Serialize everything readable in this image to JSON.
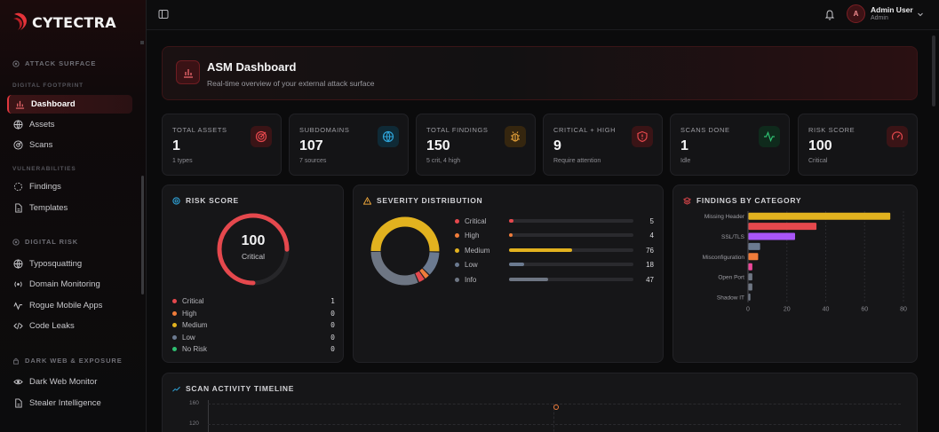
{
  "brand": {
    "name": "CYTECTRA"
  },
  "sidebar": {
    "sections": [
      {
        "title": "ATTACK SURFACE",
        "icon": "target-icon"
      },
      {
        "title": "DIGITAL RISK",
        "icon": "eye-icon"
      },
      {
        "title": "DARK WEB & EXPOSURE",
        "icon": "globe-lock-icon"
      }
    ],
    "subsections": [
      "DIGITAL FOOTPRINT",
      "VULNERABILITIES"
    ],
    "items": [
      {
        "label": "Dashboard",
        "icon": "bar-chart-icon",
        "active": true
      },
      {
        "label": "Assets",
        "icon": "globe-icon"
      },
      {
        "label": "Scans",
        "icon": "radar-icon"
      },
      {
        "label": "Findings",
        "icon": "crosshair-icon"
      },
      {
        "label": "Templates",
        "icon": "file-icon"
      },
      {
        "label": "Typosquatting",
        "icon": "globe-icon"
      },
      {
        "label": "Domain Monitoring",
        "icon": "radio-icon"
      },
      {
        "label": "Rogue Mobile Apps",
        "icon": "activity-icon"
      },
      {
        "label": "Code Leaks",
        "icon": "code-icon"
      },
      {
        "label": "Dark Web Monitor",
        "icon": "eye-icon"
      },
      {
        "label": "Stealer Intelligence",
        "icon": "file-icon"
      }
    ]
  },
  "topbar": {
    "user": {
      "initial": "A",
      "name": "Admin User",
      "role": "Admin"
    }
  },
  "hero": {
    "title": "ASM Dashboard",
    "subtitle": "Real-time overview of your external attack surface"
  },
  "stats": [
    {
      "label": "TOTAL ASSETS",
      "value": "1",
      "sub": "1 types",
      "icon": "target-icon",
      "color": "#e5484d"
    },
    {
      "label": "SUBDOMAINS",
      "value": "107",
      "sub": "7 sources",
      "icon": "globe-icon",
      "color": "#2fa4d9"
    },
    {
      "label": "TOTAL FINDINGS",
      "value": "150",
      "sub": "5 crit, 4 high",
      "icon": "bug-icon",
      "color": "#e8a33a"
    },
    {
      "label": "CRITICAL + HIGH",
      "value": "9",
      "sub": "Require attention",
      "icon": "shield-alert-icon",
      "color": "#e5484d"
    },
    {
      "label": "SCANS DONE",
      "value": "1",
      "sub": "Idle",
      "icon": "activity-icon",
      "color": "#2fbf71"
    },
    {
      "label": "RISK SCORE",
      "value": "100",
      "sub": "Critical",
      "icon": "gauge-icon",
      "color": "#e5484d"
    }
  ],
  "risk_panel": {
    "title": "RISK SCORE",
    "score": "100",
    "level": "Critical",
    "score_fraction": 0.75,
    "legend": [
      {
        "label": "Critical",
        "value": "1",
        "color": "#e5484d"
      },
      {
        "label": "High",
        "value": "0",
        "color": "#f07c3a"
      },
      {
        "label": "Medium",
        "value": "0",
        "color": "#e2b21f"
      },
      {
        "label": "Low",
        "value": "0",
        "color": "#6b7a90"
      },
      {
        "label": "No Risk",
        "value": "0",
        "color": "#2fbf71"
      }
    ]
  },
  "severity_panel": {
    "title": "SEVERITY DISTRIBUTION",
    "max": 150,
    "rows": [
      {
        "label": "Critical",
        "value": 5,
        "color": "#e5484d"
      },
      {
        "label": "High",
        "value": 4,
        "color": "#f07c3a"
      },
      {
        "label": "Medium",
        "value": 76,
        "color": "#e2b21f"
      },
      {
        "label": "Low",
        "value": 18,
        "color": "#6b7a90"
      },
      {
        "label": "Info",
        "value": 47,
        "color": "#6e7683"
      }
    ]
  },
  "category_panel": {
    "title": "FINDINGS BY CATEGORY"
  },
  "timeline_panel": {
    "title": "SCAN ACTIVITY TIMELINE",
    "y_ticks": [
      "160",
      "120"
    ]
  },
  "chart_data": [
    {
      "type": "bar",
      "orientation": "horizontal",
      "title": "FINDINGS BY CATEGORY",
      "categories": [
        "Missing Header",
        "",
        "SSL/TLS",
        "",
        "Misconfiguration",
        "",
        "Open Port",
        "",
        "Shadow IT"
      ],
      "values": [
        73,
        35,
        24,
        6,
        5,
        2,
        2,
        2,
        1
      ],
      "colors": [
        "#e2b21f",
        "#e5484d",
        "#a855f7",
        "#6b7a90",
        "#f07c3a",
        "#ec4899",
        "#6e7683",
        "#6e7683",
        "#6e7683"
      ],
      "xlim": [
        0,
        80
      ],
      "x_ticks": [
        0,
        20,
        40,
        60,
        80
      ],
      "grid": true
    }
  ]
}
